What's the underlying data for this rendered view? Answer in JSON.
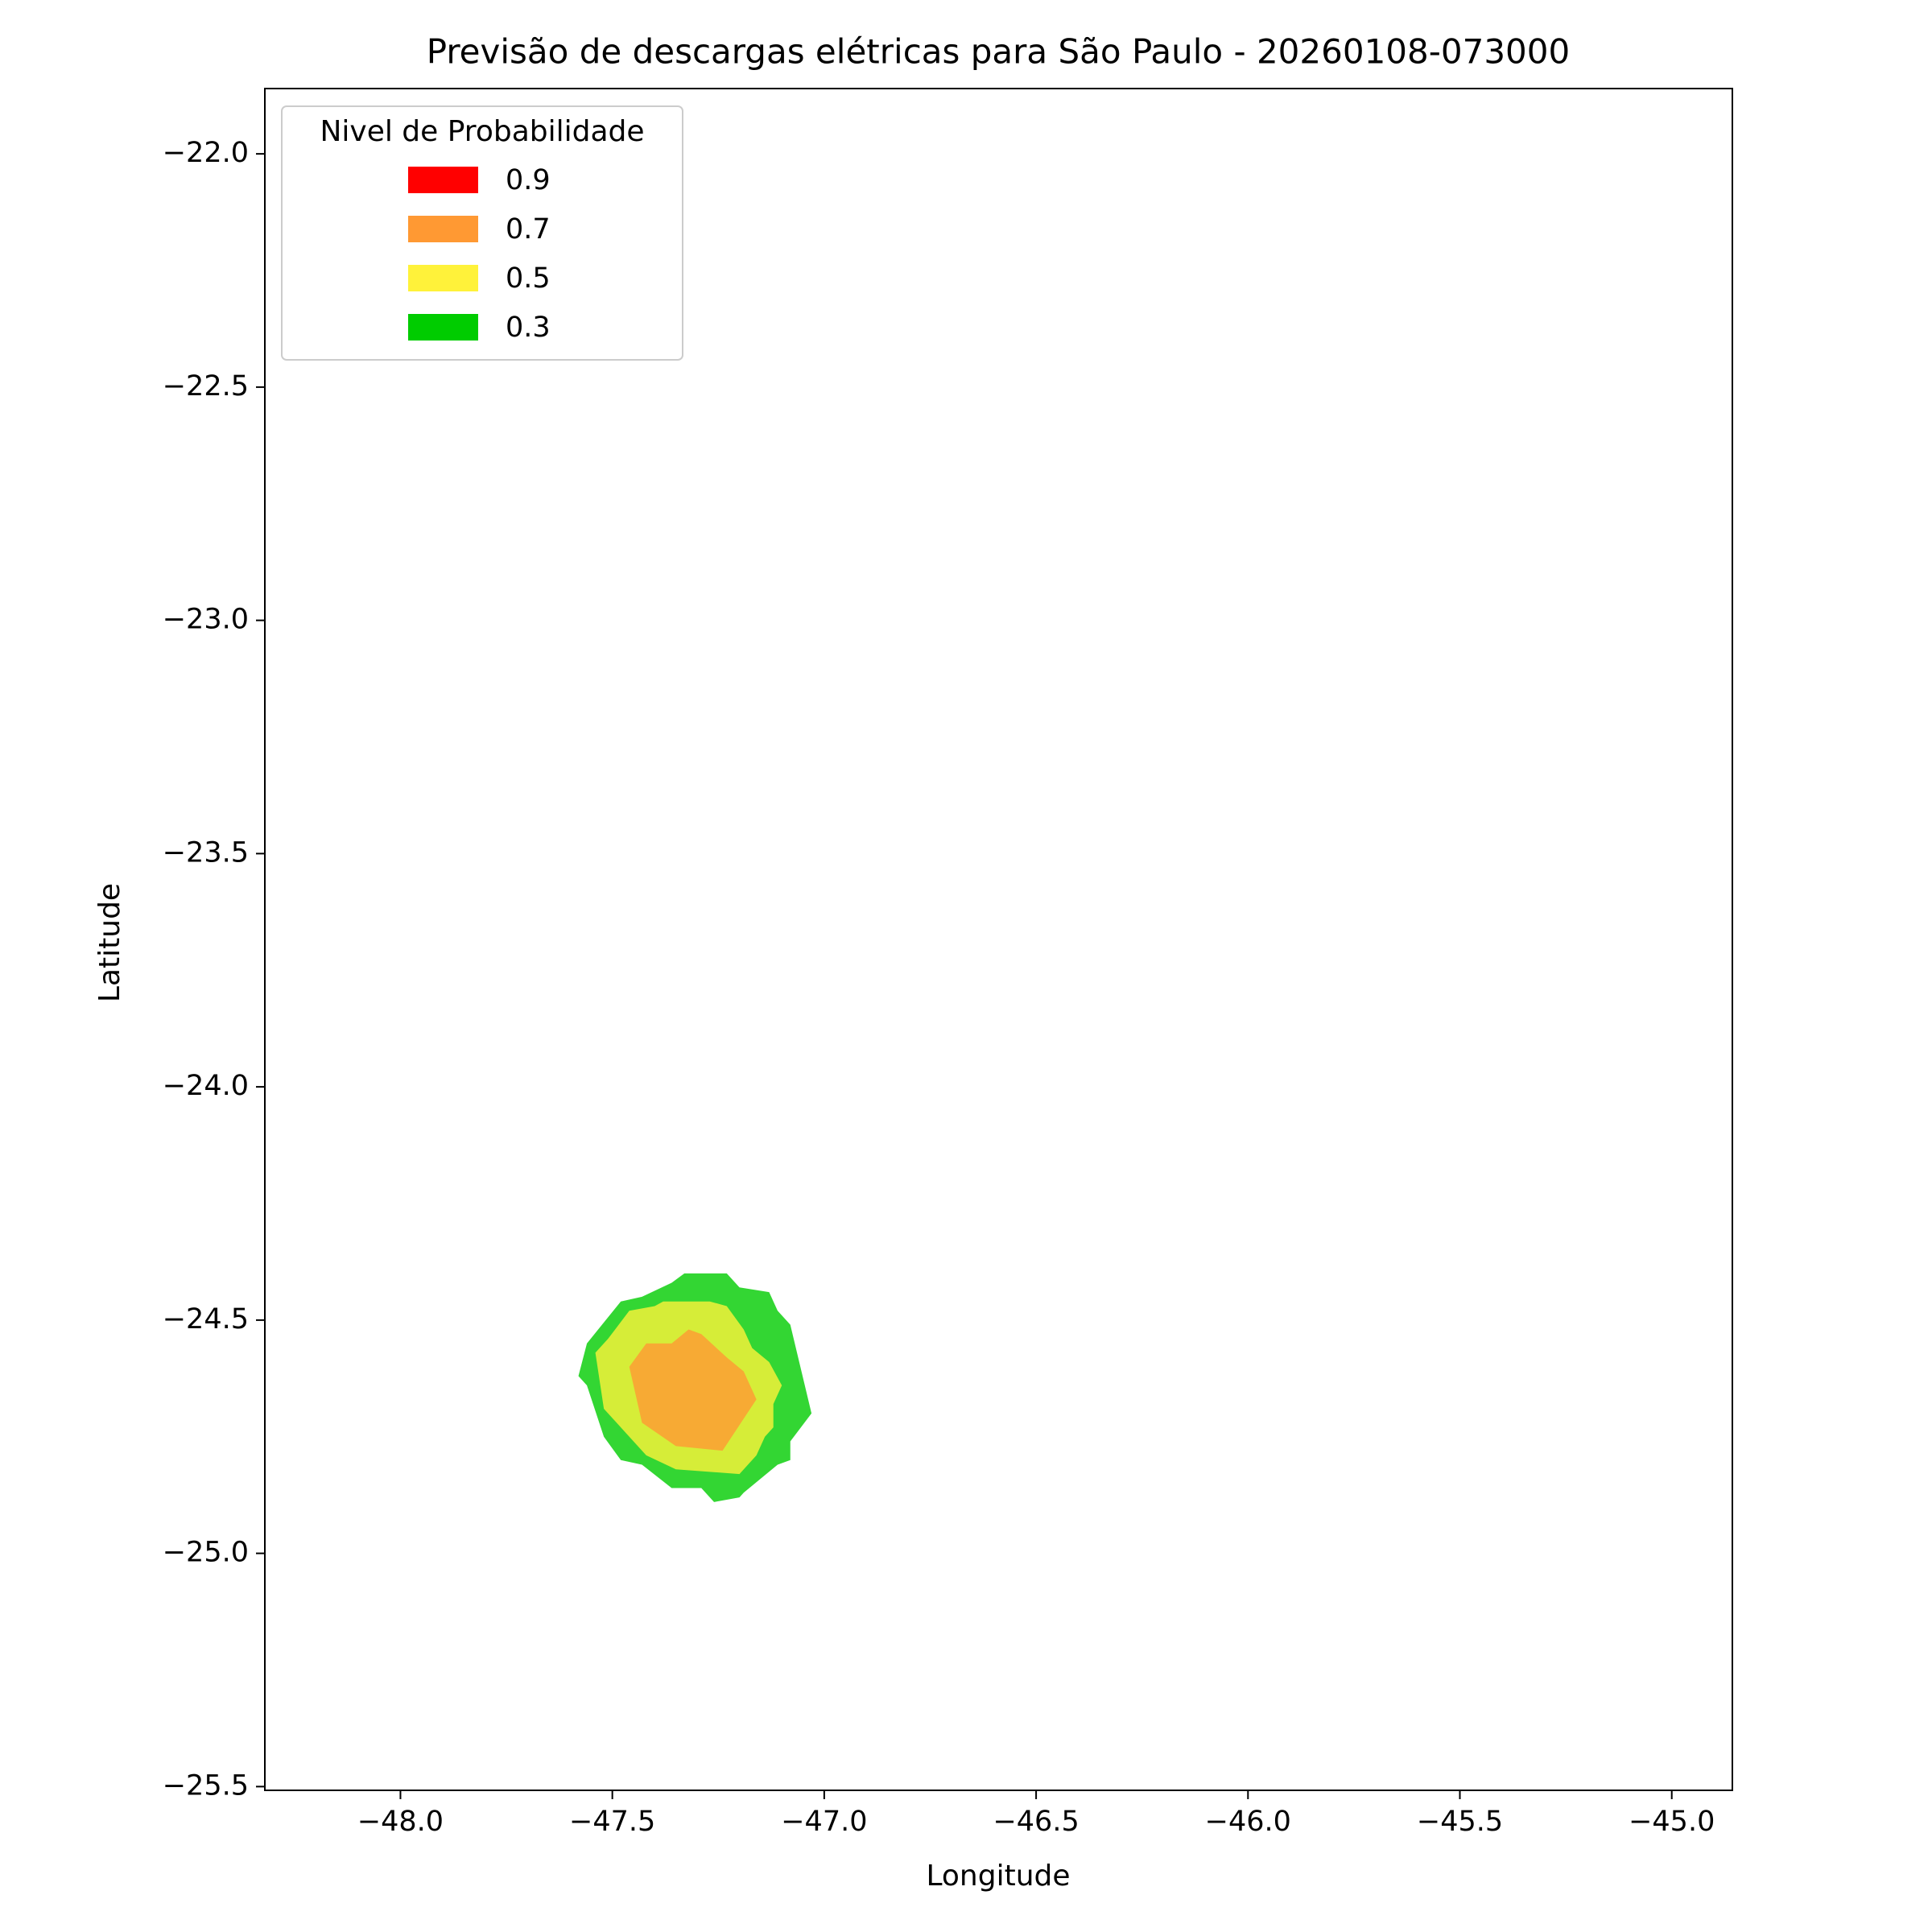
{
  "chart_data": {
    "type": "contourf",
    "title": "Previsão de descargas elétricas para São Paulo - 20260108-073000",
    "xlabel": "Longitude",
    "ylabel": "Latitude",
    "legend_title": "Nivel de Probabilidade",
    "legend": "upper left",
    "alpha": 0.8,
    "xlim": [
      -48.32,
      -44.857
    ],
    "ylim": [
      -25.508,
      -21.86
    ],
    "xticks": [
      {
        "value": -48,
        "label": "−48.0"
      },
      {
        "value": -47.5,
        "label": "−47.5"
      },
      {
        "value": -47,
        "label": "−47.0"
      },
      {
        "value": -46.5,
        "label": "−46.5"
      },
      {
        "value": -46,
        "label": "−46.0"
      },
      {
        "value": -45.5,
        "label": "−45.5"
      },
      {
        "value": -45,
        "label": "−45.0"
      }
    ],
    "yticks": [
      {
        "value": -22,
        "label": "−22.0"
      },
      {
        "value": -22.5,
        "label": "−22.5"
      },
      {
        "value": -23,
        "label": "−23.0"
      },
      {
        "value": -23.5,
        "label": "−23.5"
      },
      {
        "value": -24,
        "label": "−24.0"
      },
      {
        "value": -24.5,
        "label": "−24.5"
      },
      {
        "value": -25,
        "label": "−25.0"
      },
      {
        "value": -25.5,
        "label": "−25.5"
      }
    ],
    "series": [
      {
        "name": "0.9",
        "color": "#ff0000",
        "x": [],
        "y": []
      },
      {
        "name": "0.7",
        "color": "#ff9933",
        "x": [
          -47.46,
          -47.42,
          -47.36,
          -47.32,
          -47.29,
          -47.23,
          -47.19,
          -47.16,
          -47.24,
          -47.35,
          -47.43,
          -47.44
        ],
        "y": [
          -24.6,
          -24.55,
          -24.55,
          -24.52,
          -24.53,
          -24.58,
          -24.61,
          -24.67,
          -24.78,
          -24.77,
          -24.72,
          -24.68
        ]
      },
      {
        "name": "0.5",
        "color": "#fff23a",
        "x": [
          -47.54,
          -47.51,
          -47.46,
          -47.4,
          -47.38,
          -47.27,
          -47.23,
          -47.19,
          -47.17,
          -47.13,
          -47.1,
          -47.12,
          -47.12,
          -47.14,
          -47.16,
          -47.2,
          -47.35,
          -47.42,
          -47.48,
          -47.52
        ],
        "y": [
          -24.57,
          -24.54,
          -24.48,
          -24.47,
          -24.46,
          -24.46,
          -24.47,
          -24.52,
          -24.56,
          -24.59,
          -24.64,
          -24.68,
          -24.73,
          -24.75,
          -24.79,
          -24.83,
          -24.82,
          -24.79,
          -24.73,
          -24.69
        ]
      },
      {
        "name": "0.3",
        "color": "#00cc00",
        "x": [
          -47.58,
          -47.56,
          -47.48,
          -47.43,
          -47.36,
          -47.33,
          -47.23,
          -47.2,
          -47.13,
          -47.11,
          -47.08,
          -47.03,
          -47.08,
          -47.08,
          -47.11,
          -47.19,
          -47.2,
          -47.26,
          -47.29,
          -47.36,
          -47.43,
          -47.48,
          -47.52,
          -47.56
        ],
        "y": [
          -24.62,
          -24.55,
          -24.46,
          -24.45,
          -24.42,
          -24.4,
          -24.4,
          -24.43,
          -24.44,
          -24.48,
          -24.51,
          -24.7,
          -24.76,
          -24.8,
          -24.81,
          -24.87,
          -24.88,
          -24.89,
          -24.86,
          -24.86,
          -24.81,
          -24.8,
          -24.75,
          -24.64
        ]
      }
    ]
  }
}
